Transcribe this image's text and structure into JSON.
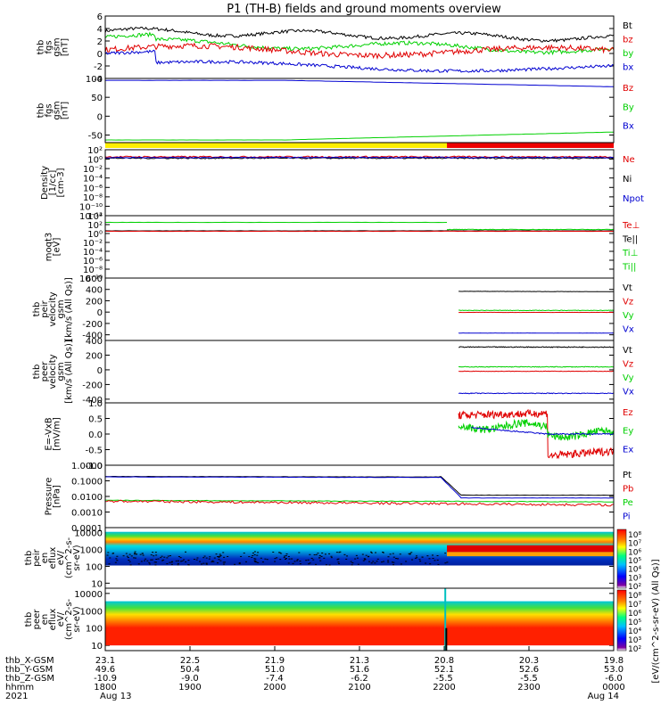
{
  "title": "P1 (TH-B) fields and ground moments overview",
  "colors": {
    "black": "#000000",
    "red": "#e00000",
    "green": "#00d000",
    "blue": "#0000d0",
    "yellow": "#ffee00",
    "bar_red": "#ee0000",
    "cyan": "#00c0e0"
  },
  "panels": [
    {
      "id": "fgs",
      "ylabel": [
        "thb",
        "fgs",
        "gsm",
        "[nT]"
      ],
      "ymin": -4,
      "ymax": 6,
      "ticks": [
        {
          "v": 6,
          "t": "6"
        },
        {
          "v": 4,
          "t": "4"
        },
        {
          "v": 2,
          "t": "2"
        },
        {
          "v": 0,
          "t": "0"
        },
        {
          "v": -2,
          "t": "-2"
        },
        {
          "v": -4,
          "t": "-4"
        }
      ],
      "legend": [
        {
          "t": "Bt",
          "c": "black"
        },
        {
          "t": "bz",
          "c": "red"
        },
        {
          "t": "by",
          "c": "green"
        },
        {
          "t": "bx",
          "c": "blue"
        }
      ]
    },
    {
      "id": "fgs_big",
      "ylabel": [
        "thb",
        "fgs",
        "gsm",
        "[nT]"
      ],
      "ymin": -70,
      "ymax": 100,
      "ticks": [
        {
          "v": 100,
          "t": "100"
        },
        {
          "v": 50,
          "t": "50"
        },
        {
          "v": 0,
          "t": "0"
        },
        {
          "v": -50,
          "t": "-50"
        }
      ],
      "legend": [
        {
          "t": "Bz",
          "c": "red"
        },
        {
          "t": "By",
          "c": "green"
        },
        {
          "t": "Bx",
          "c": "blue"
        }
      ]
    },
    {
      "id": "density",
      "ylabel": [
        "Density",
        "[1/cc]",
        "[cm-3]"
      ],
      "ymin": -12,
      "ymax": 2,
      "ticks": [
        {
          "v": 2,
          "t": "10²"
        },
        {
          "v": 0,
          "t": "10⁰"
        },
        {
          "v": -2,
          "t": "10⁻²"
        },
        {
          "v": -4,
          "t": "10⁻⁴"
        },
        {
          "v": -6,
          "t": "10⁻⁶"
        },
        {
          "v": -8,
          "t": "10⁻⁸"
        },
        {
          "v": -10,
          "t": "10⁻¹⁰"
        },
        {
          "v": -12,
          "t": "10⁻¹²"
        }
      ],
      "legend": [
        {
          "t": "Ne",
          "c": "red"
        },
        {
          "t": "Ni",
          "c": "black"
        },
        {
          "t": "Npot",
          "c": "blue"
        }
      ]
    },
    {
      "id": "temp",
      "ylabel": [
        "moqt3",
        "[eV]"
      ],
      "ymin": -10,
      "ymax": 4,
      "ticks": [
        {
          "v": 4,
          "t": "10⁴"
        },
        {
          "v": 2,
          "t": "10²"
        },
        {
          "v": 0,
          "t": "10⁰"
        },
        {
          "v": -2,
          "t": "10⁻²"
        },
        {
          "v": -4,
          "t": "10⁻⁴"
        },
        {
          "v": -6,
          "t": "10⁻⁶"
        },
        {
          "v": -8,
          "t": "10⁻⁸"
        },
        {
          "v": -10,
          "t": "10⁻¹⁰"
        }
      ],
      "legend": [
        {
          "t": "Te⊥",
          "c": "red"
        },
        {
          "t": "Te||",
          "c": "black"
        },
        {
          "t": "Ti⊥",
          "c": "green"
        },
        {
          "t": "Ti||",
          "c": "green"
        }
      ]
    },
    {
      "id": "peir_vel",
      "ylabel": [
        "thb",
        "peir",
        "velocity",
        "gsm",
        "[km/s (All Qs)]"
      ],
      "ymin": -500,
      "ymax": 600,
      "ticks": [
        {
          "v": 600,
          "t": "600"
        },
        {
          "v": 400,
          "t": "400"
        },
        {
          "v": 200,
          "t": "200"
        },
        {
          "v": 0,
          "t": "0"
        },
        {
          "v": -200,
          "t": "-200"
        },
        {
          "v": -400,
          "t": "-400"
        }
      ],
      "legend": [
        {
          "t": "Vt",
          "c": "black"
        },
        {
          "t": "Vz",
          "c": "red"
        },
        {
          "t": "Vy",
          "c": "green"
        },
        {
          "t": "Vx",
          "c": "blue"
        }
      ]
    },
    {
      "id": "peer_vel",
      "ylabel": [
        "thb",
        "peer",
        "velocity",
        "gsm",
        "[km/s (All Qs)]"
      ],
      "ymin": -450,
      "ymax": 400,
      "ticks": [
        {
          "v": 400,
          "t": "400"
        },
        {
          "v": 200,
          "t": "200"
        },
        {
          "v": 0,
          "t": "0"
        },
        {
          "v": -200,
          "t": "-200"
        },
        {
          "v": -400,
          "t": "-400"
        }
      ],
      "legend": [
        {
          "t": "Vt",
          "c": "black"
        },
        {
          "t": "Vz",
          "c": "red"
        },
        {
          "t": "Vy",
          "c": "green"
        },
        {
          "t": "Vx",
          "c": "blue"
        }
      ]
    },
    {
      "id": "efield",
      "ylabel": [
        "E=-VxB",
        "[mV/m]"
      ],
      "ymin": -1.0,
      "ymax": 1.0,
      "ticks": [
        {
          "v": 1.0,
          "t": "1.0"
        },
        {
          "v": 0.5,
          "t": "0.5"
        },
        {
          "v": 0.0,
          "t": "0.0"
        },
        {
          "v": -0.5,
          "t": "-0.5"
        },
        {
          "v": -1.0,
          "t": "-1.0"
        }
      ],
      "legend": [
        {
          "t": "Ez",
          "c": "red"
        },
        {
          "t": "Ey",
          "c": "green"
        },
        {
          "t": "Ex",
          "c": "blue"
        }
      ]
    },
    {
      "id": "pressure",
      "ylabel": [
        "Pressure",
        "[nPa]"
      ],
      "ymin": -4,
      "ymax": 0,
      "ticks": [
        {
          "v": 0,
          "t": "1.0000"
        },
        {
          "v": -1,
          "t": "0.1000"
        },
        {
          "v": -2,
          "t": "0.0100"
        },
        {
          "v": -3,
          "t": "0.0010"
        },
        {
          "v": -4,
          "t": "0.0001"
        }
      ],
      "legend": [
        {
          "t": "Pt",
          "c": "black"
        },
        {
          "t": "Pb",
          "c": "red"
        },
        {
          "t": "Pe",
          "c": "green"
        },
        {
          "t": "Pi",
          "c": "blue"
        }
      ]
    },
    {
      "id": "peir_en",
      "ylabel": [
        "thb",
        "peir",
        "en",
        "eflux",
        "eV/",
        "(cm^2-s-",
        "sr-eV)"
      ],
      "ymin": 0.7,
      "ymax": 4.3,
      "ticks": [
        {
          "v": 4,
          "t": "10000"
        },
        {
          "v": 3,
          "t": "1000"
        },
        {
          "v": 2,
          "t": "100"
        },
        {
          "v": 1,
          "t": "10"
        }
      ],
      "legend": []
    },
    {
      "id": "peer_en",
      "ylabel": [
        "thb",
        "peer",
        "en",
        "eflux",
        "eV/",
        "(cm^2-s-",
        "sr-eV)"
      ],
      "ymin": 0.7,
      "ymax": 4.3,
      "ticks": [
        {
          "v": 4,
          "t": "10000"
        },
        {
          "v": 3,
          "t": "1000"
        },
        {
          "v": 2,
          "t": "100"
        },
        {
          "v": 1,
          "t": "10"
        }
      ],
      "legend": []
    }
  ],
  "colorbar": {
    "label": "[eV/(cm^2-s-sr-eV) (All Qs)]",
    "ticks_top": [
      "10⁸",
      "10⁷",
      "10⁶",
      "10⁵",
      "10⁴",
      "10³",
      "10²"
    ],
    "ticks_bottom": [
      "10⁸",
      "10⁷",
      "10⁶",
      "10⁵",
      "10⁴",
      "10³",
      "10²"
    ]
  },
  "chart_data": {
    "type": "line",
    "title": "P1 (TH-B) fields and ground moments overview",
    "x_range_hhmm": [
      "1800",
      "0000"
    ],
    "date_start": "Aug 13",
    "date_end": "Aug 14",
    "year": "2021",
    "series_summary": [
      {
        "panel": "fgs",
        "name": "Bt",
        "approx_nT": "3.6 → 2.4"
      },
      {
        "panel": "fgs",
        "name": "by",
        "approx_nT": "2.5 → 0.5"
      },
      {
        "panel": "fgs",
        "name": "bz",
        "approx_nT": "0.5 → 0"
      },
      {
        "panel": "fgs",
        "name": "bx",
        "approx_nT": "-1.5 → -2.5"
      },
      {
        "panel": "fgs_big",
        "name": "Bx",
        "approx_nT": "95 → 78"
      },
      {
        "panel": "fgs_big",
        "name": "By",
        "approx_nT": "-62 → -42"
      },
      {
        "panel": "pressure",
        "name": "Pt",
        "approx_nPa": "0.2 → 0.012"
      },
      {
        "panel": "pressure",
        "name": "Pb",
        "approx_nPa": "0.005 → 0.003"
      }
    ],
    "ephemeris": [
      {
        "label": "thb_X-GSM",
        "values": [
          "23.1",
          "22.5",
          "21.9",
          "21.3",
          "20.8",
          "20.3",
          "19.8"
        ]
      },
      {
        "label": "thb_Y-GSM",
        "values": [
          "49.6",
          "50.4",
          "51.0",
          "51.6",
          "52.1",
          "52.6",
          "53.0"
        ]
      },
      {
        "label": "thb_Z-GSM",
        "values": [
          "-10.9",
          "-9.0",
          "-7.4",
          "-6.2",
          "-5.5",
          "-5.5",
          "-6.0"
        ]
      },
      {
        "label": "hhmm",
        "values": [
          "1800",
          "1900",
          "2000",
          "2100",
          "2200",
          "2300",
          "0000"
        ]
      },
      {
        "label": "2021",
        "values": [
          "Aug 13",
          "",
          "",
          "",
          "",
          "",
          "Aug 14"
        ]
      }
    ]
  }
}
